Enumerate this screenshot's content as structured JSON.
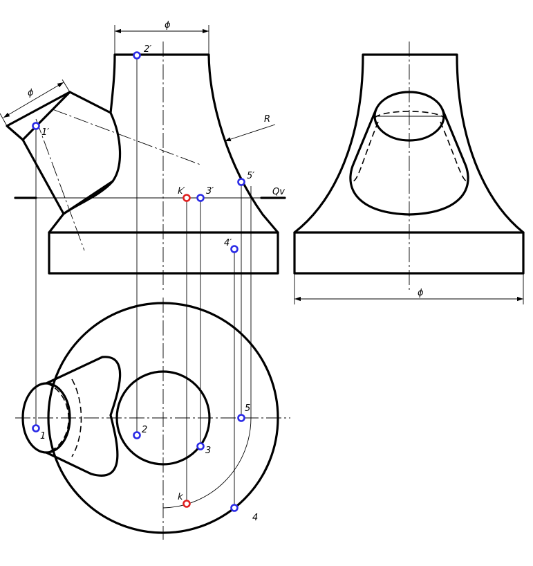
{
  "labels": {
    "p2_front": "2′",
    "p1_front": "1′",
    "pk_front": "k′",
    "p3_front": "3′",
    "p5_front": "5′",
    "p4_front": "4′",
    "p1_top": "1",
    "p2_top": "2",
    "p3_top": "3",
    "p5_top": "5",
    "pk_top": "k",
    "p4_top": "4",
    "plane": "Qv",
    "radius": "R",
    "dia_front_top": "ϕ",
    "dia_branch": "ϕ",
    "dia_side_base": "ϕ"
  },
  "point_colors": {
    "primary": "#2a2ae6",
    "special": "#e02020"
  }
}
